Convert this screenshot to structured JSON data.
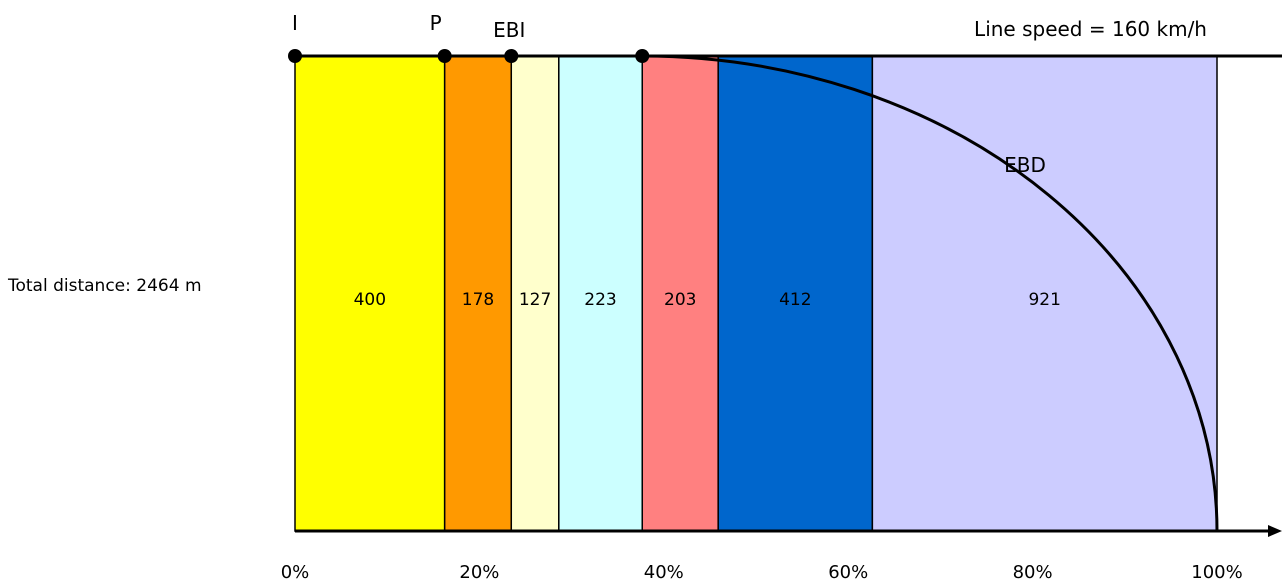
{
  "chart_data": {
    "type": "bar",
    "subtype": "stacked-horizontal-segments",
    "total_label": "Total distance: 2464 m",
    "line_speed_label": "Line speed = 160 km/h",
    "segments": [
      {
        "value": 400,
        "label": "400",
        "color": "#FFFF00"
      },
      {
        "value": 178,
        "label": "178",
        "color": "#FF9900"
      },
      {
        "value": 127,
        "label": "127",
        "color": "#FFFFCC"
      },
      {
        "value": 223,
        "label": "223",
        "color": "#CCFFFF"
      },
      {
        "value": 203,
        "label": "203",
        "color": "#FF8080"
      },
      {
        "value": 412,
        "label": "412",
        "color": "#0066CC"
      },
      {
        "value": 921,
        "label": "921",
        "color": "#CCCCFF"
      }
    ],
    "markers": [
      {
        "label": "I",
        "position": 0
      },
      {
        "label": "P",
        "position": 400
      },
      {
        "label": "EBI",
        "position": 578
      },
      {
        "label": "",
        "position": 928
      }
    ],
    "curve": {
      "label": "EBD",
      "start": 928,
      "end": 2464
    },
    "x_ticks": [
      "0%",
      "20%",
      "40%",
      "60%",
      "80%",
      "100%"
    ],
    "xlim": [
      0,
      100
    ]
  }
}
